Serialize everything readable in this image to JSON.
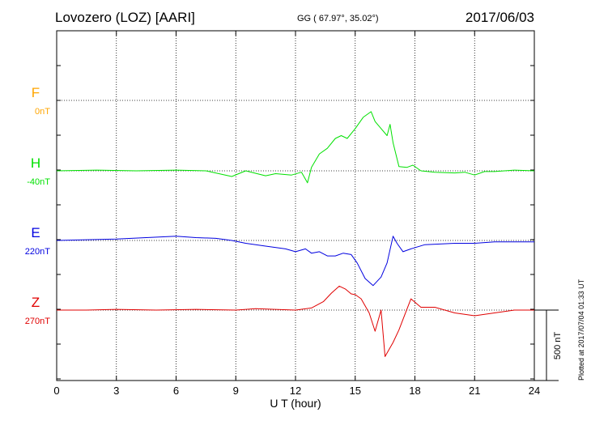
{
  "header": {
    "station": "Lovozero (LOZ)  [AARI]",
    "coords": "GG ( 67.97°,  35.02°)",
    "date": "2017/06/03",
    "plotted": "Plotted at 2017/07/04 01:33 UT"
  },
  "chart_data": {
    "type": "line",
    "title": "Lovozero (LOZ)  [AARI]",
    "xlabel": "U T (hour)",
    "xlim": [
      0,
      24
    ],
    "xticks": [
      0,
      3,
      6,
      9,
      12,
      15,
      18,
      21,
      24
    ],
    "grid": true,
    "scale_bar": {
      "label": "500 nT",
      "value_nT": 500
    },
    "channels": [
      {
        "name": "F",
        "baseline": "0nT",
        "color": "#ffa500",
        "x": [],
        "values": []
      },
      {
        "name": "H",
        "baseline": "-40nT",
        "color": "#00e000",
        "x": [
          0,
          2,
          4,
          6,
          7.5,
          8.8,
          9.5,
          10.5,
          11,
          11.8,
          12.3,
          12.6,
          12.8,
          13.2,
          13.6,
          14,
          14.3,
          14.6,
          15,
          15.4,
          15.8,
          16,
          16.3,
          16.6,
          16.75,
          16.9,
          17.2,
          17.6,
          17.9,
          18.3,
          19,
          20,
          20.5,
          21,
          21.5,
          22,
          23,
          24
        ],
        "values": [
          0,
          5,
          0,
          5,
          0,
          -40,
          0,
          -35,
          -20,
          -30,
          -10,
          -85,
          25,
          120,
          160,
          230,
          250,
          230,
          300,
          380,
          420,
          350,
          300,
          250,
          330,
          200,
          30,
          25,
          40,
          0,
          -10,
          -15,
          -10,
          -30,
          -5,
          -5,
          5,
          0
        ]
      },
      {
        "name": "E",
        "baseline": "220nT",
        "color": "#0000e0",
        "x": [
          0,
          1.5,
          3,
          4.5,
          6,
          7,
          8,
          8.8,
          9.5,
          10.5,
          11.5,
          12,
          12.5,
          12.8,
          13.2,
          13.6,
          14,
          14.4,
          14.8,
          15.1,
          15.5,
          15.9,
          16.3,
          16.6,
          16.9,
          17.1,
          17.4,
          17.8,
          18.5,
          20,
          21,
          22,
          23,
          24
        ],
        "values": [
          0,
          5,
          10,
          20,
          30,
          20,
          15,
          0,
          -20,
          -40,
          -60,
          -80,
          -60,
          -90,
          -80,
          -110,
          -110,
          -90,
          -100,
          -160,
          -270,
          -320,
          -260,
          -160,
          30,
          -20,
          -80,
          -60,
          -30,
          -20,
          -20,
          -10,
          -10,
          -10
        ]
      },
      {
        "name": "Z",
        "baseline": "270nT",
        "color": "#e00000",
        "x": [
          0,
          1.5,
          3,
          5,
          7,
          9,
          10,
          12,
          12.8,
          13.4,
          13.8,
          14.2,
          14.5,
          14.8,
          15,
          15.3,
          15.7,
          16,
          16.3,
          16.5,
          16.9,
          17.2,
          17.5,
          17.8,
          18.3,
          19,
          20,
          21,
          22,
          23,
          24
        ],
        "values": [
          0,
          0,
          5,
          0,
          5,
          0,
          10,
          0,
          15,
          60,
          120,
          170,
          150,
          115,
          110,
          80,
          -20,
          -150,
          0,
          -330,
          -230,
          -140,
          -30,
          80,
          20,
          20,
          -20,
          -40,
          -20,
          0,
          0
        ]
      }
    ]
  }
}
